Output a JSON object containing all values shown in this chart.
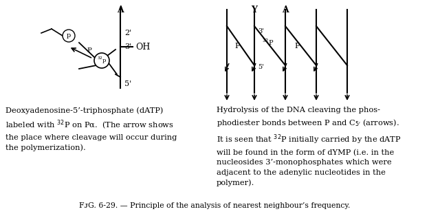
{
  "title": "Fɪg. 6-29. — Principle of the analysis of nearest neighbour’s frequency.",
  "bg_color": "#ffffff",
  "text_color": "#000000",
  "left_caption_line1": "Deoxyadenosine-5’-triphosphate (dATP)",
  "left_caption_line2": "labeled with $^{32}$P on Pα.  (The arrow shows",
  "left_caption_line3": "the place where cleavage will occur during",
  "left_caption_line4": "the polymerization).",
  "right_caption_line1": "Hydrolysis of the DNA cleaving the phos-",
  "right_caption_line2": "phodiester bonds between P and C$_{5^{\\prime}}$ (arrows).",
  "right_caption_line3": "It is seen that $^{32}$P initially carried by the dATP",
  "right_caption_line4": "will be found in the form of dYMP (i.e. in the",
  "right_caption_line5": "nucleosides 3’-monophosphates which were",
  "right_caption_line6": "adjacent to the adenylic nucleotides in the",
  "right_caption_line7": "polymer)."
}
